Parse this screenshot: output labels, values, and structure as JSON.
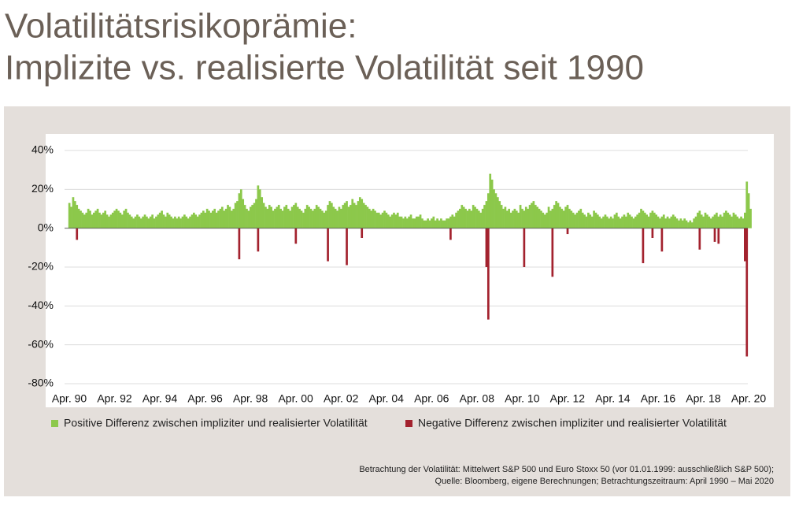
{
  "chart_data": {
    "type": "bar",
    "title_lines": [
      "Volatilitätsrisikoprämie:",
      "Implizite vs. realisierte Volatilität seit 1990"
    ],
    "categories": [
      "Apr. 90",
      null,
      null,
      null,
      null,
      null,
      null,
      null,
      null,
      null,
      null,
      null,
      null,
      null,
      null,
      null,
      null,
      null,
      null,
      null,
      null,
      null,
      null,
      null,
      "Apr. 92",
      null,
      null,
      null,
      null,
      null,
      null,
      null,
      null,
      null,
      null,
      null,
      null,
      null,
      null,
      null,
      null,
      null,
      null,
      null,
      null,
      null,
      null,
      null,
      "Apr. 94",
      null,
      null,
      null,
      null,
      null,
      null,
      null,
      null,
      null,
      null,
      null,
      null,
      null,
      null,
      null,
      null,
      null,
      null,
      null,
      null,
      null,
      null,
      null,
      "Apr. 96",
      null,
      null,
      null,
      null,
      null,
      null,
      null,
      null,
      null,
      null,
      null,
      null,
      null,
      null,
      null,
      null,
      null,
      null,
      null,
      null,
      null,
      null,
      null,
      "Apr. 98",
      null,
      null,
      null,
      null,
      null,
      null,
      null,
      null,
      null,
      null,
      null,
      null,
      null,
      null,
      null,
      null,
      null,
      null,
      null,
      null,
      null,
      null,
      null,
      "Apr. 00",
      null,
      null,
      null,
      null,
      null,
      null,
      null,
      null,
      null,
      null,
      null,
      null,
      null,
      null,
      null,
      null,
      null,
      null,
      null,
      null,
      null,
      null,
      null,
      "Apr. 02",
      null,
      null,
      null,
      null,
      null,
      null,
      null,
      null,
      null,
      null,
      null,
      null,
      null,
      null,
      null,
      null,
      null,
      null,
      null,
      null,
      null,
      null,
      null,
      "Apr. 04",
      null,
      null,
      null,
      null,
      null,
      null,
      null,
      null,
      null,
      null,
      null,
      null,
      null,
      null,
      null,
      null,
      null,
      null,
      null,
      null,
      null,
      null,
      null,
      "Apr. 06",
      null,
      null,
      null,
      null,
      null,
      null,
      null,
      null,
      null,
      null,
      null,
      null,
      null,
      null,
      null,
      null,
      null,
      null,
      null,
      null,
      null,
      null,
      null,
      "Apr. 08",
      null,
      null,
      null,
      null,
      null,
      null,
      null,
      null,
      null,
      null,
      null,
      null,
      null,
      null,
      null,
      null,
      null,
      null,
      null,
      null,
      null,
      null,
      null,
      "Apr. 10",
      null,
      null,
      null,
      null,
      null,
      null,
      null,
      null,
      null,
      null,
      null,
      null,
      null,
      null,
      null,
      null,
      null,
      null,
      null,
      null,
      null,
      null,
      null,
      "Apr. 12",
      null,
      null,
      null,
      null,
      null,
      null,
      null,
      null,
      null,
      null,
      null,
      null,
      null,
      null,
      null,
      null,
      null,
      null,
      null,
      null,
      null,
      null,
      null,
      "Apr. 14",
      null,
      null,
      null,
      null,
      null,
      null,
      null,
      null,
      null,
      null,
      null,
      null,
      null,
      null,
      null,
      null,
      null,
      null,
      null,
      null,
      null,
      null,
      null,
      "Apr. 16",
      null,
      null,
      null,
      null,
      null,
      null,
      null,
      null,
      null,
      null,
      null,
      null,
      null,
      null,
      null,
      null,
      null,
      null,
      null,
      null,
      null,
      null,
      null,
      "Apr. 18",
      null,
      null,
      null,
      null,
      null,
      null,
      null,
      null,
      null,
      null,
      null,
      null,
      null,
      null,
      null,
      null,
      null,
      null,
      null,
      null,
      null,
      null,
      null,
      "Apr. 20",
      null
    ],
    "series": [
      {
        "name": "Positive Differenz zwischen impliziter und realisierter Volatilität",
        "color": "#8cc84b",
        "values": [
          13,
          11,
          16,
          14,
          12,
          10,
          9,
          8,
          7,
          8,
          10,
          9,
          7,
          8,
          9,
          10,
          8,
          7,
          8,
          9,
          7,
          6,
          7,
          8,
          9,
          10,
          9,
          8,
          7,
          9,
          10,
          8,
          7,
          6,
          5,
          6,
          7,
          6,
          5,
          6,
          7,
          6,
          5,
          6,
          7,
          5,
          6,
          7,
          8,
          9,
          7,
          6,
          8,
          7,
          6,
          5,
          6,
          5,
          6,
          5,
          6,
          7,
          6,
          5,
          6,
          7,
          8,
          7,
          6,
          7,
          8,
          9,
          8,
          10,
          9,
          8,
          9,
          10,
          8,
          9,
          10,
          11,
          9,
          10,
          12,
          11,
          9,
          10,
          13,
          14,
          18,
          20,
          15,
          12,
          10,
          9,
          11,
          12,
          13,
          15,
          22,
          20,
          16,
          13,
          11,
          10,
          12,
          11,
          9,
          10,
          11,
          12,
          10,
          9,
          11,
          12,
          10,
          9,
          11,
          12,
          13,
          11,
          10,
          9,
          8,
          10,
          12,
          11,
          10,
          9,
          10,
          12,
          11,
          10,
          9,
          8,
          9,
          12,
          14,
          13,
          11,
          10,
          9,
          11,
          10,
          12,
          13,
          14,
          11,
          12,
          15,
          13,
          12,
          14,
          16,
          15,
          13,
          12,
          11,
          10,
          9,
          10,
          9,
          8,
          8,
          7,
          8,
          9,
          8,
          7,
          6,
          7,
          8,
          7,
          8,
          6,
          6,
          5,
          6,
          5,
          6,
          7,
          5,
          5,
          6,
          6,
          7,
          5,
          4,
          4,
          5,
          4,
          5,
          6,
          4,
          5,
          4,
          5,
          4,
          4,
          5,
          5,
          6,
          7,
          6,
          8,
          9,
          10,
          12,
          11,
          10,
          9,
          10,
          9,
          12,
          11,
          10,
          9,
          8,
          10,
          12,
          14,
          18,
          28,
          25,
          20,
          18,
          16,
          14,
          12,
          10,
          11,
          9,
          10,
          8,
          9,
          10,
          9,
          8,
          12,
          10,
          9,
          11,
          10,
          12,
          13,
          14,
          12,
          11,
          10,
          9,
          8,
          7,
          8,
          11,
          9,
          10,
          12,
          14,
          13,
          11,
          10,
          9,
          11,
          12,
          10,
          9,
          8,
          7,
          8,
          9,
          10,
          8,
          7,
          6,
          8,
          7,
          6,
          9,
          8,
          7,
          6,
          5,
          6,
          7,
          6,
          5,
          6,
          5,
          7,
          8,
          6,
          5,
          6,
          7,
          6,
          8,
          7,
          6,
          5,
          6,
          7,
          8,
          10,
          9,
          8,
          7,
          6,
          8,
          9,
          8,
          7,
          6,
          5,
          6,
          7,
          5,
          6,
          5,
          6,
          7,
          6,
          5,
          4,
          5,
          4,
          5,
          4,
          3,
          4,
          3,
          5,
          6,
          8,
          9,
          7,
          6,
          8,
          7,
          6,
          5,
          6,
          7,
          8,
          6,
          7,
          6,
          8,
          9,
          8,
          7,
          6,
          8,
          7,
          6,
          5,
          6,
          5,
          8,
          24,
          18,
          10
        ]
      },
      {
        "name": "Negative Differenz zwischen impliziter und realisierter Volatilität",
        "color": "#a3222e",
        "values": [
          null,
          null,
          null,
          null,
          -6,
          null,
          null,
          null,
          null,
          null,
          null,
          null,
          null,
          null,
          null,
          null,
          null,
          null,
          null,
          null,
          null,
          null,
          null,
          null,
          null,
          null,
          null,
          null,
          null,
          null,
          null,
          null,
          null,
          null,
          null,
          null,
          null,
          null,
          null,
          null,
          null,
          null,
          null,
          null,
          null,
          null,
          null,
          null,
          null,
          null,
          null,
          null,
          null,
          null,
          null,
          null,
          null,
          null,
          null,
          null,
          null,
          null,
          null,
          null,
          null,
          null,
          null,
          null,
          null,
          null,
          null,
          null,
          null,
          null,
          null,
          null,
          null,
          null,
          null,
          null,
          null,
          null,
          null,
          null,
          null,
          null,
          null,
          null,
          null,
          null,
          -16,
          null,
          null,
          null,
          null,
          null,
          null,
          null,
          null,
          null,
          -12,
          null,
          null,
          null,
          null,
          null,
          null,
          null,
          null,
          null,
          null,
          null,
          null,
          null,
          null,
          null,
          null,
          null,
          null,
          null,
          -8,
          null,
          null,
          null,
          null,
          null,
          null,
          null,
          null,
          null,
          null,
          null,
          null,
          null,
          null,
          null,
          null,
          -17,
          null,
          null,
          null,
          null,
          null,
          null,
          null,
          null,
          null,
          -19,
          null,
          null,
          null,
          null,
          null,
          null,
          null,
          -5,
          null,
          null,
          null,
          null,
          null,
          null,
          null,
          null,
          null,
          null,
          null,
          null,
          null,
          null,
          null,
          null,
          null,
          null,
          null,
          null,
          null,
          null,
          null,
          null,
          null,
          null,
          null,
          null,
          null,
          null,
          null,
          null,
          null,
          null,
          null,
          null,
          null,
          null,
          null,
          null,
          null,
          null,
          null,
          null,
          null,
          null,
          -6,
          null,
          null,
          null,
          null,
          null,
          null,
          null,
          null,
          null,
          null,
          null,
          null,
          null,
          null,
          null,
          null,
          null,
          null,
          -20,
          -47,
          null,
          null,
          null,
          null,
          null,
          null,
          null,
          null,
          null,
          null,
          null,
          null,
          null,
          null,
          null,
          null,
          null,
          null,
          -20,
          null,
          null,
          null,
          null,
          null,
          null,
          null,
          null,
          null,
          null,
          null,
          null,
          null,
          null,
          -25,
          null,
          null,
          null,
          null,
          null,
          null,
          null,
          -3,
          null,
          null,
          null,
          null,
          null,
          null,
          null,
          null,
          null,
          null,
          null,
          null,
          null,
          null,
          null,
          null,
          null,
          null,
          null,
          null,
          null,
          null,
          null,
          null,
          null,
          null,
          null,
          null,
          null,
          null,
          null,
          null,
          null,
          null,
          null,
          null,
          null,
          null,
          null,
          -18,
          null,
          null,
          null,
          null,
          -5,
          null,
          null,
          null,
          null,
          -12,
          null,
          null,
          null,
          null,
          null,
          null,
          null,
          null,
          null,
          null,
          null,
          null,
          null,
          null,
          null,
          null,
          null,
          null,
          null,
          -11,
          null,
          null,
          null,
          null,
          null,
          null,
          null,
          -7,
          null,
          -8,
          null,
          null,
          null,
          null,
          null,
          null,
          null,
          null,
          null,
          null,
          null,
          null,
          null,
          -17,
          -66,
          null,
          null
        ]
      }
    ],
    "ylim": [
      -80,
      40
    ],
    "yticks": [
      {
        "value": -80,
        "label": "-80%"
      },
      {
        "value": -60,
        "label": "-60%"
      },
      {
        "value": -40,
        "label": "-40%"
      },
      {
        "value": -20,
        "label": "-20%"
      },
      {
        "value": 0,
        "label": "0%"
      },
      {
        "value": 20,
        "label": "20%"
      },
      {
        "value": 40,
        "label": "40%"
      }
    ],
    "grid": true,
    "footnote_lines": [
      "Betrachtung der Volatilität: Mittelwert S&P 500 und Euro Stoxx 50 (vor 01.01.1999: ausschließlich S&P 500);",
      "Quelle: Bloomberg, eigene Berechnungen; Betrachtungszeitraum: April 1990 – Mai 2020"
    ]
  }
}
